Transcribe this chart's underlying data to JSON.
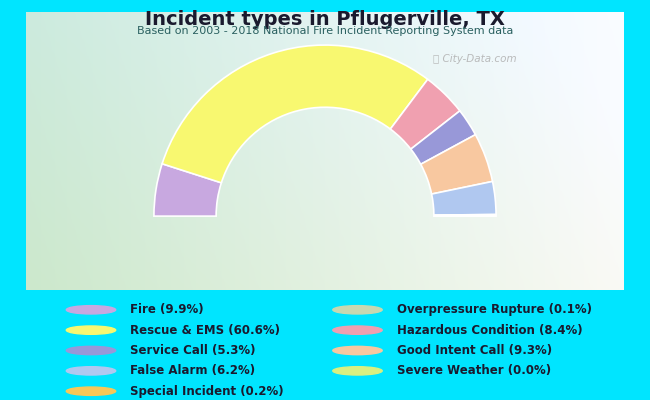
{
  "title": "Incident types in Pflugerville, TX",
  "subtitle": "Based on 2003 - 2018 National Fire Incident Reporting System data",
  "background_color": "#00e5ff",
  "watermark": "ⓘ City-Data.com",
  "segments_ordered": [
    {
      "label": "Fire (9.9%)",
      "value": 9.9,
      "color": "#c8a8e0"
    },
    {
      "label": "Rescue & EMS (60.6%)",
      "value": 60.6,
      "color": "#f8f870"
    },
    {
      "label": "Hazardous Condition (8.4%)",
      "value": 8.4,
      "color": "#f0a0b0"
    },
    {
      "label": "Service Call (5.3%)",
      "value": 5.3,
      "color": "#9898d8"
    },
    {
      "label": "Good Intent Call (9.3%)",
      "value": 9.3,
      "color": "#f8c8a0"
    },
    {
      "label": "False Alarm (6.2%)",
      "value": 6.2,
      "color": "#b0c8f0"
    },
    {
      "label": "Special Incident (0.2%)",
      "value": 0.2,
      "color": "#f8c858"
    },
    {
      "label": "Overpressure Rupture (0.1%)",
      "value": 0.1,
      "color": "#c8d8b0"
    },
    {
      "label": "Severe Weather (0.0%)",
      "value": 0.0,
      "color": "#d8f080"
    }
  ],
  "legend_left": [
    {
      "label": "Fire (9.9%)",
      "color": "#c8a8e0"
    },
    {
      "label": "Rescue & EMS (60.6%)",
      "color": "#f8f870"
    },
    {
      "label": "Service Call (5.3%)",
      "color": "#9898d8"
    },
    {
      "label": "False Alarm (6.2%)",
      "color": "#b0c8f0"
    },
    {
      "label": "Special Incident (0.2%)",
      "color": "#f8c858"
    }
  ],
  "legend_right": [
    {
      "label": "Overpressure Rupture (0.1%)",
      "color": "#c8d8b0"
    },
    {
      "label": "Hazardous Condition (8.4%)",
      "color": "#f0a0b0"
    },
    {
      "label": "Good Intent Call (9.3%)",
      "color": "#f8c8a0"
    },
    {
      "label": "Severe Weather (0.0%)",
      "color": "#d8f080"
    }
  ],
  "title_fontsize": 14,
  "subtitle_fontsize": 8,
  "legend_fontsize": 8.5
}
